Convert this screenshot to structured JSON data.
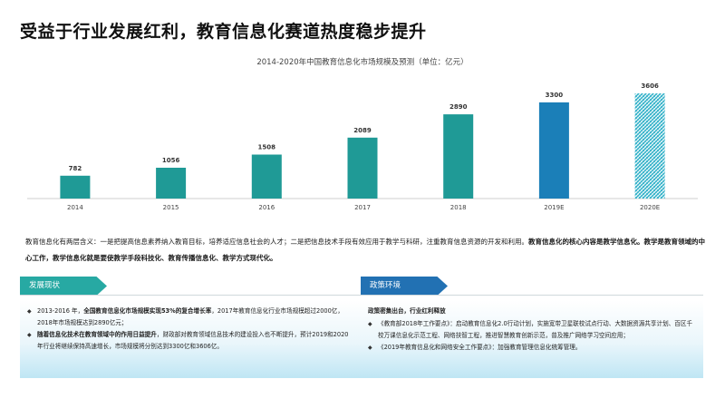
{
  "page": {
    "title": "受益于行业发展红利，教育信息化赛道热度稳步提升"
  },
  "chart_data": {
    "type": "bar",
    "title": "2014-2020年中国教育信息化市场规模及预测（单位：亿元）",
    "categories": [
      "2014",
      "2015",
      "2016",
      "2017",
      "2018",
      "2019E",
      "2020E"
    ],
    "values": [
      782,
      1056,
      1508,
      2089,
      2890,
      3300,
      3606
    ],
    "ylim": [
      0,
      3700
    ],
    "grid": false,
    "legend": "none",
    "colors": {
      "default": "#1f9a96",
      "2019E": "#1b7fb8",
      "2020E_pattern": "#33b3cc"
    }
  },
  "definition": {
    "intro": "教育信息化有两层含义：一是把提高信息素养纳入教育目标，培养适应信息社会的人才；二是把信息技术手段有效应用于教学与科研，注重教育信息资源的开发和利用。",
    "highlight1": "教育信息化的核心内容是教学信息化。",
    "middle": "教学是教育领域的中心工作，教学信息化就是要使教学手段科技化、教育传播信息化、",
    "highlight2": "教学方式现代化。"
  },
  "panels": {
    "left": {
      "tab": "发展现状",
      "items": [
        {
          "text_a": "2013-2016 年，",
          "bold_a": "全国教育信息化市场规模实现53%的复合增长率",
          "text_b": "，2017年教育信息化行业市场规模超过2000亿，2018年市场规模达到2890亿元；"
        },
        {
          "bold_a": "随着信息化技术在教育领域中的作用日益提升",
          "text_b": "，财政部对教育领域信息技术的建设投入也不断提升，预计2019和2020年行业将继续保持高速增长，市场规模将分别达到3300亿和3606亿。"
        }
      ]
    },
    "right": {
      "tab": "政策环境",
      "heading": "政策密集出台，行业红利释放",
      "items": [
        "《教育部2018年工作要点》：启动教育信息化2.0行动计划，实施宽带卫星联校试点行动、大数据资源共享计划、百区千校万课信息化示范工程、网络扶智工程，推进智慧教育创新示范，普及推广网络学习空间应用；",
        "《2019年教育信息化和网络安全工作要点》：加强教育管理信息化统筹管理。"
      ]
    }
  }
}
